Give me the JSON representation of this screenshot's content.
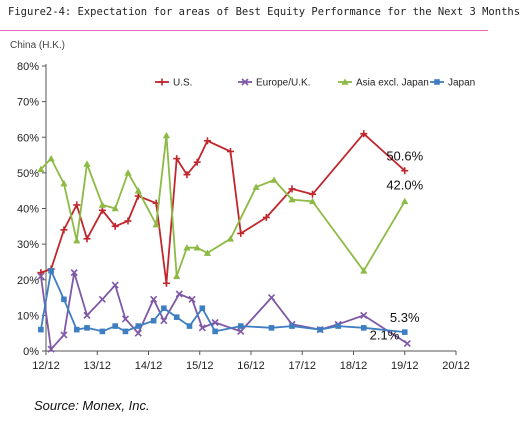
{
  "figure": {
    "title": "Figure2-4: Expectation for areas of Best Equity Performance for the Next 3 Months",
    "region_label": "China (H.K.)",
    "source": "Source: Monex,  Inc."
  },
  "chart_data": {
    "type": "line",
    "xlim": [
      12,
      20
    ],
    "ylim": [
      0,
      80
    ],
    "x_ticks": [
      {
        "x": 12,
        "label": "12/12"
      },
      {
        "x": 13,
        "label": "13/12"
      },
      {
        "x": 14,
        "label": "14/12"
      },
      {
        "x": 15,
        "label": "15/12"
      },
      {
        "x": 16,
        "label": "16/12"
      },
      {
        "x": 17,
        "label": "17/12"
      },
      {
        "x": 18,
        "label": "18/12"
      },
      {
        "x": 19,
        "label": "19/12"
      },
      {
        "x": 20,
        "label": "20/12"
      }
    ],
    "y_ticks": [
      {
        "y": 0,
        "label": "0%"
      },
      {
        "y": 10,
        "label": "10%"
      },
      {
        "y": 20,
        "label": "20%"
      },
      {
        "y": 30,
        "label": "30%"
      },
      {
        "y": 40,
        "label": "40%"
      },
      {
        "y": 50,
        "label": "50%"
      },
      {
        "y": 60,
        "label": "60%"
      },
      {
        "y": 70,
        "label": "70%"
      },
      {
        "y": 80,
        "label": "80%"
      }
    ],
    "grid": false,
    "legend_position": "top",
    "series": [
      {
        "name": "U.S.",
        "color": "#c0272d",
        "marker": "plus",
        "points": [
          [
            11.9,
            22
          ],
          [
            12.1,
            23
          ],
          [
            12.35,
            34
          ],
          [
            12.6,
            41
          ],
          [
            12.8,
            31.5
          ],
          [
            13.1,
            39.5
          ],
          [
            13.35,
            35
          ],
          [
            13.6,
            36.5
          ],
          [
            13.8,
            43.5
          ],
          [
            14.15,
            41.5
          ],
          [
            14.35,
            19
          ],
          [
            14.55,
            54
          ],
          [
            14.75,
            49.5
          ],
          [
            14.95,
            53
          ],
          [
            15.15,
            59
          ],
          [
            15.6,
            56
          ],
          [
            15.8,
            33
          ],
          [
            16.3,
            37.5
          ],
          [
            16.8,
            45.5
          ],
          [
            17.2,
            44
          ],
          [
            18.2,
            61
          ],
          [
            19,
            50.6
          ]
        ],
        "end_label": "50.6%"
      },
      {
        "name": "Europe/U.K.",
        "color": "#7f59a6",
        "marker": "x",
        "points": [
          [
            11.9,
            21
          ],
          [
            12.1,
            0.5
          ],
          [
            12.35,
            4.5
          ],
          [
            12.55,
            22
          ],
          [
            12.8,
            10
          ],
          [
            13.1,
            14.5
          ],
          [
            13.35,
            18.5
          ],
          [
            13.55,
            9
          ],
          [
            13.8,
            5
          ],
          [
            14.1,
            14.5
          ],
          [
            14.3,
            8.5
          ],
          [
            14.6,
            16
          ],
          [
            14.85,
            14.5
          ],
          [
            15.05,
            6.5
          ],
          [
            15.3,
            8
          ],
          [
            15.8,
            5.5
          ],
          [
            16.4,
            15
          ],
          [
            16.8,
            7.5
          ],
          [
            17.35,
            6
          ],
          [
            17.7,
            7.5
          ],
          [
            18.2,
            10
          ],
          [
            19.05,
            2.1
          ]
        ],
        "end_label": "2.1%"
      },
      {
        "name": "Asia excl. Japan",
        "color": "#8dba44",
        "marker": "triangle",
        "points": [
          [
            11.9,
            51
          ],
          [
            12.1,
            54
          ],
          [
            12.35,
            47
          ],
          [
            12.6,
            31
          ],
          [
            12.8,
            52.5
          ],
          [
            13.1,
            41
          ],
          [
            13.35,
            40
          ],
          [
            13.6,
            50
          ],
          [
            13.8,
            45
          ],
          [
            14.15,
            35.5
          ],
          [
            14.35,
            60.5
          ],
          [
            14.55,
            21
          ],
          [
            14.75,
            29
          ],
          [
            14.95,
            29
          ],
          [
            15.15,
            27.5
          ],
          [
            15.6,
            31.5
          ],
          [
            16.1,
            46
          ],
          [
            16.45,
            48
          ],
          [
            16.8,
            42.5
          ],
          [
            17.2,
            42
          ],
          [
            18.2,
            22.5
          ],
          [
            19,
            42
          ]
        ],
        "end_label": "42.0%"
      },
      {
        "name": "Japan",
        "color": "#3f7fc1",
        "marker": "square",
        "points": [
          [
            11.9,
            6
          ],
          [
            12.1,
            22.5
          ],
          [
            12.35,
            14.5
          ],
          [
            12.6,
            6
          ],
          [
            12.8,
            6.5
          ],
          [
            13.1,
            5.5
          ],
          [
            13.35,
            7
          ],
          [
            13.55,
            5.5
          ],
          [
            13.8,
            7
          ],
          [
            14.1,
            8.5
          ],
          [
            14.3,
            12
          ],
          [
            14.55,
            9.5
          ],
          [
            14.8,
            7
          ],
          [
            15.05,
            12
          ],
          [
            15.3,
            5.5
          ],
          [
            15.8,
            7
          ],
          [
            16.4,
            6.5
          ],
          [
            16.8,
            7
          ],
          [
            17.35,
            6
          ],
          [
            17.7,
            7
          ],
          [
            18.2,
            6.5
          ],
          [
            19,
            5.3
          ]
        ],
        "end_label": "5.3%"
      }
    ]
  }
}
